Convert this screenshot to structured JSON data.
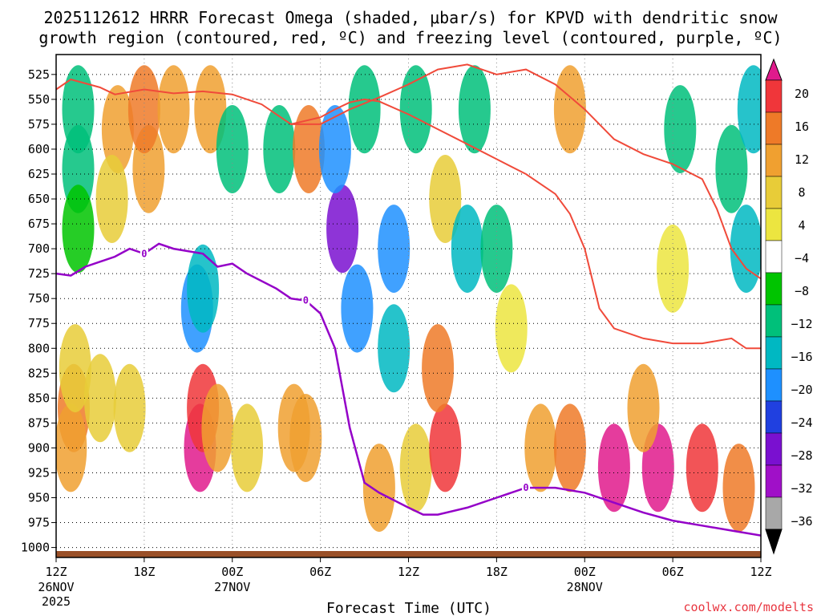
{
  "chart_data": {
    "type": "heatmap",
    "title_line1": "2025112612 HRRR Forecast Omega (shaded, μbar/s) for KPVD with dendritic snow",
    "title_line2": "growth region (contoured, red, ºC) and freezing level (contoured, purple, ºC)",
    "xlabel": "Forecast Time (UTC)",
    "credit": "coolwx.com/modelts",
    "x_axis": {
      "unit": "forecast hour",
      "range": [
        0,
        48
      ],
      "ticks": [
        {
          "hour": 0,
          "label": "12Z",
          "date": "26NOV",
          "year": "2025"
        },
        {
          "hour": 6,
          "label": "18Z"
        },
        {
          "hour": 12,
          "label": "00Z",
          "date": "27NOV"
        },
        {
          "hour": 18,
          "label": "06Z"
        },
        {
          "hour": 24,
          "label": "12Z"
        },
        {
          "hour": 30,
          "label": "18Z"
        },
        {
          "hour": 36,
          "label": "00Z",
          "date": "28NOV"
        },
        {
          "hour": 42,
          "label": "06Z"
        },
        {
          "hour": 48,
          "label": "12Z"
        }
      ]
    },
    "y_axis": {
      "unit": "hPa",
      "range": [
        1010,
        505
      ],
      "ticks": [
        525,
        550,
        575,
        600,
        625,
        650,
        675,
        700,
        725,
        750,
        775,
        800,
        825,
        850,
        875,
        900,
        925,
        950,
        975,
        1000
      ]
    },
    "colorbar": {
      "labels": [
        "20",
        "16",
        "12",
        "8",
        "4",
        "−4",
        "−8",
        "−12",
        "−16",
        "−20",
        "−24",
        "−28",
        "−32",
        "−36"
      ],
      "colors": [
        "#e01a8c",
        "#f0363a",
        "#ee7a28",
        "#f0a030",
        "#e8cc38",
        "#ece540",
        "#ffffff",
        "#00c400",
        "#00c07a",
        "#00b8c2",
        "#1e90ff",
        "#2040e0",
        "#7a10d0",
        "#a010c8",
        "#a8a8a8",
        "#000000"
      ]
    },
    "omega_cells": [
      {
        "t": 1.5,
        "p": 560,
        "v": -8
      },
      {
        "t": 1.5,
        "p": 620,
        "v": -8
      },
      {
        "t": 1.5,
        "p": 680,
        "v": -4
      },
      {
        "t": 1.2,
        "p": 860,
        "v": 12
      },
      {
        "t": 1.0,
        "p": 900,
        "v": 8
      },
      {
        "t": 1.3,
        "p": 820,
        "v": 6
      },
      {
        "t": 4.2,
        "p": 580,
        "v": 8
      },
      {
        "t": 3.8,
        "p": 650,
        "v": 6
      },
      {
        "t": 3.0,
        "p": 850,
        "v": 6
      },
      {
        "t": 5.0,
        "p": 860,
        "v": 6
      },
      {
        "t": 6.3,
        "p": 620,
        "v": 8
      },
      {
        "t": 6.0,
        "p": 560,
        "v": 12
      },
      {
        "t": 8.0,
        "p": 560,
        "v": 8
      },
      {
        "t": 9.6,
        "p": 760,
        "v": -16
      },
      {
        "t": 10.0,
        "p": 740,
        "v": -12
      },
      {
        "t": 9.8,
        "p": 900,
        "v": 20
      },
      {
        "t": 10.0,
        "p": 860,
        "v": 16
      },
      {
        "t": 11.0,
        "p": 880,
        "v": 8
      },
      {
        "t": 10.5,
        "p": 560,
        "v": 8
      },
      {
        "t": 12.0,
        "p": 600,
        "v": -8
      },
      {
        "t": 13.0,
        "p": 900,
        "v": 6
      },
      {
        "t": 15.2,
        "p": 600,
        "v": -8
      },
      {
        "t": 16.2,
        "p": 880,
        "v": 8
      },
      {
        "t": 17.2,
        "p": 600,
        "v": 12
      },
      {
        "t": 17.0,
        "p": 890,
        "v": 8
      },
      {
        "t": 19.5,
        "p": 680,
        "v": -28
      },
      {
        "t": 19.0,
        "p": 600,
        "v": -16
      },
      {
        "t": 20.5,
        "p": 760,
        "v": -16
      },
      {
        "t": 21.0,
        "p": 560,
        "v": -8
      },
      {
        "t": 23.0,
        "p": 700,
        "v": -16
      },
      {
        "t": 23.0,
        "p": 800,
        "v": -12
      },
      {
        "t": 24.5,
        "p": 560,
        "v": -8
      },
      {
        "t": 22.0,
        "p": 940,
        "v": 8
      },
      {
        "t": 24.5,
        "p": 920,
        "v": 6
      },
      {
        "t": 26.5,
        "p": 900,
        "v": 16
      },
      {
        "t": 26.0,
        "p": 820,
        "v": 12
      },
      {
        "t": 26.5,
        "p": 650,
        "v": 6
      },
      {
        "t": 28.0,
        "p": 700,
        "v": -12
      },
      {
        "t": 28.5,
        "p": 560,
        "v": -8
      },
      {
        "t": 30.0,
        "p": 700,
        "v": -8
      },
      {
        "t": 31.0,
        "p": 780,
        "v": 4
      },
      {
        "t": 33.0,
        "p": 900,
        "v": 8
      },
      {
        "t": 35.0,
        "p": 900,
        "v": 12
      },
      {
        "t": 38.0,
        "p": 920,
        "v": 20
      },
      {
        "t": 41.0,
        "p": 920,
        "v": 20
      },
      {
        "t": 44.0,
        "p": 920,
        "v": 16
      },
      {
        "t": 46.5,
        "p": 940,
        "v": 12
      },
      {
        "t": 40.0,
        "p": 860,
        "v": 8
      },
      {
        "t": 35.0,
        "p": 560,
        "v": 8
      },
      {
        "t": 42.5,
        "p": 580,
        "v": -8
      },
      {
        "t": 42.0,
        "p": 720,
        "v": 4
      },
      {
        "t": 46.0,
        "p": 620,
        "v": -8
      },
      {
        "t": 47.0,
        "p": 700,
        "v": -12
      },
      {
        "t": 47.5,
        "p": 560,
        "v": -12
      }
    ],
    "dgz_upper_red": [
      {
        "t": 0.0,
        "p": 540
      },
      {
        "t": 1.0,
        "p": 530
      },
      {
        "t": 3.0,
        "p": 538
      },
      {
        "t": 4.0,
        "p": 545
      },
      {
        "t": 6.0,
        "p": 540
      },
      {
        "t": 8.0,
        "p": 544
      },
      {
        "t": 10.0,
        "p": 542
      },
      {
        "t": 12.0,
        "p": 545
      },
      {
        "t": 14.0,
        "p": 555
      },
      {
        "t": 16.0,
        "p": 575
      },
      {
        "t": 18.0,
        "p": 575
      },
      {
        "t": 20.0,
        "p": 560
      },
      {
        "t": 22.0,
        "p": 548
      },
      {
        "t": 24.0,
        "p": 535
      },
      {
        "t": 26.0,
        "p": 520
      },
      {
        "t": 28.0,
        "p": 515
      },
      {
        "t": 30.0,
        "p": 525
      },
      {
        "t": 32.0,
        "p": 520
      },
      {
        "t": 34.0,
        "p": 535
      },
      {
        "t": 36.0,
        "p": 560
      },
      {
        "t": 38.0,
        "p": 590
      },
      {
        "t": 40.0,
        "p": 605
      },
      {
        "t": 42.0,
        "p": 615
      },
      {
        "t": 44.0,
        "p": 630
      },
      {
        "t": 45.0,
        "p": 660
      },
      {
        "t": 46.0,
        "p": 700
      },
      {
        "t": 47.0,
        "p": 720
      },
      {
        "t": 48.0,
        "p": 730
      }
    ],
    "dgz_lower_red": [
      {
        "t": 16.0,
        "p": 575
      },
      {
        "t": 18.0,
        "p": 568
      },
      {
        "t": 19.0,
        "p": 560
      },
      {
        "t": 20.0,
        "p": 553
      },
      {
        "t": 21.0,
        "p": 550
      },
      {
        "t": 22.0,
        "p": 552
      },
      {
        "t": 24.0,
        "p": 565
      },
      {
        "t": 26.0,
        "p": 580
      },
      {
        "t": 28.0,
        "p": 595
      },
      {
        "t": 30.0,
        "p": 610
      },
      {
        "t": 32.0,
        "p": 625
      },
      {
        "t": 34.0,
        "p": 645
      },
      {
        "t": 35.0,
        "p": 665
      },
      {
        "t": 36.0,
        "p": 700
      },
      {
        "t": 37.0,
        "p": 760
      },
      {
        "t": 38.0,
        "p": 780
      },
      {
        "t": 40.0,
        "p": 790
      },
      {
        "t": 42.0,
        "p": 795
      },
      {
        "t": 44.0,
        "p": 795
      },
      {
        "t": 46.0,
        "p": 790
      },
      {
        "t": 47.0,
        "p": 800
      },
      {
        "t": 48.0,
        "p": 800
      }
    ],
    "freezing_level_purple": [
      {
        "t": 0.0,
        "p": 725
      },
      {
        "t": 1.0,
        "p": 727
      },
      {
        "t": 2.0,
        "p": 718
      },
      {
        "t": 4.0,
        "p": 708
      },
      {
        "t": 5.0,
        "p": 700
      },
      {
        "t": 6.0,
        "p": 705
      },
      {
        "t": 7.0,
        "p": 695
      },
      {
        "t": 8.0,
        "p": 700
      },
      {
        "t": 10.0,
        "p": 705
      },
      {
        "t": 11.0,
        "p": 718
      },
      {
        "t": 12.0,
        "p": 715
      },
      {
        "t": 13.0,
        "p": 725
      },
      {
        "t": 15.0,
        "p": 740
      },
      {
        "t": 16.0,
        "p": 750
      },
      {
        "t": 17.0,
        "p": 752
      },
      {
        "t": 18.0,
        "p": 765
      },
      {
        "t": 19.0,
        "p": 800
      },
      {
        "t": 20.0,
        "p": 880
      },
      {
        "t": 21.0,
        "p": 935
      },
      {
        "t": 22.0,
        "p": 945
      },
      {
        "t": 24.0,
        "p": 960
      },
      {
        "t": 25.0,
        "p": 967
      },
      {
        "t": 26.0,
        "p": 967
      },
      {
        "t": 28.0,
        "p": 960
      },
      {
        "t": 30.0,
        "p": 950
      },
      {
        "t": 32.0,
        "p": 940
      },
      {
        "t": 34.0,
        "p": 940
      },
      {
        "t": 36.0,
        "p": 945
      },
      {
        "t": 38.0,
        "p": 955
      },
      {
        "t": 40.0,
        "p": 965
      },
      {
        "t": 42.0,
        "p": 973
      },
      {
        "t": 44.0,
        "p": 978
      },
      {
        "t": 46.0,
        "p": 983
      },
      {
        "t": 48.0,
        "p": 988
      }
    ],
    "freezing_level_labels": [
      {
        "t": 6.0,
        "p": 705,
        "text": "0"
      },
      {
        "t": 17.0,
        "p": 752,
        "text": "0"
      },
      {
        "t": 32.0,
        "p": 940,
        "text": "0"
      }
    ]
  }
}
